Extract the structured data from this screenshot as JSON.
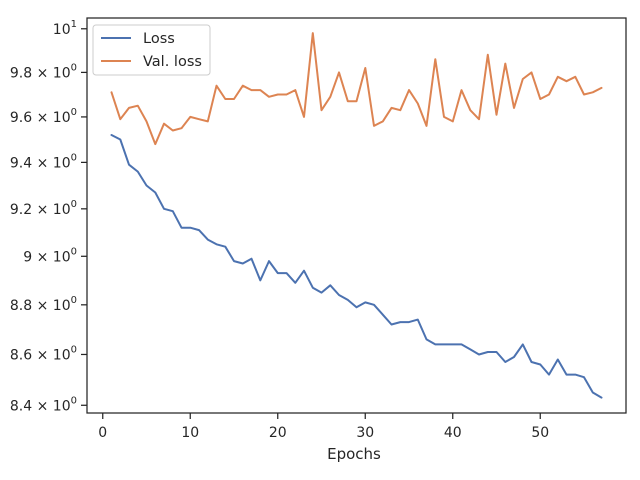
{
  "chart_data": {
    "type": "line",
    "xlabel": "Epochs",
    "ylabel": "",
    "yscale": "log",
    "xlim": [
      -1.8,
      59.8
    ],
    "ylim": [
      8.37,
      10.05
    ],
    "grid": false,
    "legend_position": "top-left",
    "x_ticks": [
      0,
      10,
      20,
      30,
      40,
      50
    ],
    "x_tick_labels": [
      "0",
      "10",
      "20",
      "30",
      "40",
      "50"
    ],
    "y_ticks": [
      8.4,
      8.6,
      8.8,
      9.0,
      9.2,
      9.4,
      9.6,
      9.8,
      10.0
    ],
    "y_tick_labels": [
      {
        "mantissa": "8.4",
        "base": "10",
        "exp": "0"
      },
      {
        "mantissa": "8.6",
        "base": "10",
        "exp": "0"
      },
      {
        "mantissa": "8.8",
        "base": "10",
        "exp": "0"
      },
      {
        "mantissa": "9",
        "base": "10",
        "exp": "0"
      },
      {
        "mantissa": "9.2",
        "base": "10",
        "exp": "0"
      },
      {
        "mantissa": "9.4",
        "base": "10",
        "exp": "0"
      },
      {
        "mantissa": "9.6",
        "base": "10",
        "exp": "0"
      },
      {
        "mantissa": "9.8",
        "base": "10",
        "exp": "0"
      },
      {
        "mantissa": "",
        "base": "10",
        "exp": "1"
      }
    ],
    "x": [
      1,
      2,
      3,
      4,
      5,
      6,
      7,
      8,
      9,
      10,
      11,
      12,
      13,
      14,
      15,
      16,
      17,
      18,
      19,
      20,
      21,
      22,
      23,
      24,
      25,
      26,
      27,
      28,
      29,
      30,
      31,
      32,
      33,
      34,
      35,
      36,
      37,
      38,
      39,
      40,
      41,
      42,
      43,
      44,
      45,
      46,
      47,
      48,
      49,
      50,
      51,
      52,
      53,
      54,
      55,
      56,
      57
    ],
    "series": [
      {
        "name": "Loss",
        "color": "#4c72b0",
        "values": [
          9.52,
          9.5,
          9.39,
          9.36,
          9.3,
          9.27,
          9.2,
          9.19,
          9.12,
          9.12,
          9.11,
          9.07,
          9.05,
          9.04,
          8.98,
          8.97,
          8.99,
          8.9,
          8.98,
          8.93,
          8.93,
          8.89,
          8.94,
          8.87,
          8.85,
          8.88,
          8.84,
          8.82,
          8.79,
          8.81,
          8.8,
          8.76,
          8.72,
          8.73,
          8.73,
          8.74,
          8.66,
          8.64,
          8.64,
          8.64,
          8.64,
          8.62,
          8.6,
          8.61,
          8.61,
          8.57,
          8.59,
          8.64,
          8.57,
          8.56,
          8.52,
          8.58,
          8.52,
          8.52,
          8.51,
          8.45,
          8.43
        ]
      },
      {
        "name": "Val. loss",
        "color": "#dd8452",
        "values": [
          9.71,
          9.59,
          9.64,
          9.65,
          9.58,
          9.48,
          9.57,
          9.54,
          9.55,
          9.6,
          9.59,
          9.58,
          9.74,
          9.68,
          9.68,
          9.74,
          9.72,
          9.72,
          9.69,
          9.7,
          9.7,
          9.72,
          9.6,
          9.98,
          9.63,
          9.69,
          9.8,
          9.67,
          9.67,
          9.82,
          9.56,
          9.58,
          9.64,
          9.63,
          9.72,
          9.66,
          9.56,
          9.86,
          9.6,
          9.58,
          9.72,
          9.63,
          9.59,
          9.88,
          9.61,
          9.84,
          9.64,
          9.77,
          9.8,
          9.68,
          9.7,
          9.78,
          9.76,
          9.78,
          9.7,
          9.71,
          9.73
        ]
      }
    ]
  }
}
